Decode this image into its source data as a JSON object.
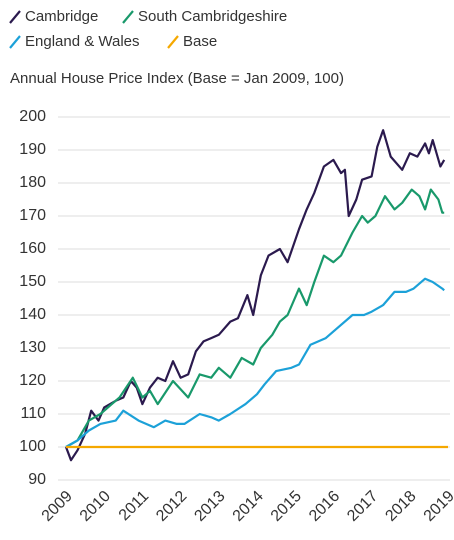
{
  "chart_data": {
    "type": "line",
    "title": "Annual House Price Index (Base = Jan 2009, 100)",
    "xlim": [
      2009,
      2019
    ],
    "xticks": [
      2009,
      2010,
      2011,
      2012,
      2013,
      2014,
      2015,
      2016,
      2017,
      2018,
      2019
    ],
    "ylim": [
      90,
      200
    ],
    "yticks": [
      90,
      100,
      110,
      120,
      130,
      140,
      150,
      160,
      170,
      180,
      190,
      200
    ],
    "grid": true,
    "series": [
      {
        "name": "Cambridge",
        "color": "#2b1a4e",
        "x": [
          2009,
          2009.13,
          2009.3,
          2009.5,
          2009.66,
          2009.85,
          2010.0,
          2010.3,
          2010.5,
          2010.7,
          2010.85,
          2011.0,
          2011.2,
          2011.4,
          2011.6,
          2011.8,
          2012.0,
          2012.2,
          2012.4,
          2012.6,
          2012.8,
          2013.0,
          2013.3,
          2013.5,
          2013.75,
          2013.9,
          2014.1,
          2014.3,
          2014.6,
          2014.8,
          2015.1,
          2015.3,
          2015.5,
          2015.75,
          2016.0,
          2016.2,
          2016.3,
          2016.4,
          2016.6,
          2016.75,
          2017.0,
          2017.15,
          2017.3,
          2017.5,
          2017.8,
          2018.0,
          2018.2,
          2018.4,
          2018.5,
          2018.6,
          2018.8,
          2018.9
        ],
        "values": [
          100,
          96,
          99,
          104,
          111,
          108,
          112,
          114,
          115,
          120,
          118,
          113,
          118,
          121,
          120,
          126,
          121,
          122,
          129,
          132,
          133,
          134,
          138,
          139,
          146,
          140,
          152,
          158,
          160,
          156,
          166,
          172,
          177,
          185,
          187,
          183,
          184,
          170,
          175,
          181,
          182,
          191,
          196,
          188,
          184,
          189,
          188,
          192,
          189,
          193,
          185,
          187
        ]
      },
      {
        "name": "South Cambridgeshire",
        "color": "#19996b",
        "x": [
          2009,
          2009.3,
          2009.6,
          2009.9,
          2010.2,
          2010.4,
          2010.75,
          2011.0,
          2011.2,
          2011.4,
          2011.8,
          2012.2,
          2012.5,
          2012.8,
          2013.0,
          2013.3,
          2013.6,
          2013.9,
          2014.1,
          2014.4,
          2014.6,
          2014.8,
          2015.1,
          2015.3,
          2015.5,
          2015.75,
          2016.0,
          2016.2,
          2016.5,
          2016.75,
          2016.9,
          2017.1,
          2017.35,
          2017.6,
          2017.8,
          2018.05,
          2018.25,
          2018.4,
          2018.55,
          2018.75,
          2018.85,
          2018.9
        ],
        "values": [
          100,
          102,
          108,
          110,
          113,
          115,
          121,
          115,
          117,
          113,
          120,
          115,
          122,
          121,
          124,
          121,
          127,
          125,
          130,
          134,
          138,
          140,
          148,
          143,
          150,
          158,
          156,
          158,
          165,
          170,
          168,
          170,
          176,
          172,
          174,
          178,
          176,
          172,
          178,
          175,
          171,
          171
        ]
      },
      {
        "name": "England & Wales",
        "color": "#1ca1d8",
        "x": [
          2009,
          2009.3,
          2009.6,
          2009.9,
          2010.3,
          2010.5,
          2010.9,
          2011.3,
          2011.6,
          2011.9,
          2012.1,
          2012.5,
          2012.8,
          2013.0,
          2013.3,
          2013.7,
          2014.0,
          2014.2,
          2014.5,
          2014.9,
          2015.1,
          2015.4,
          2015.8,
          2016.1,
          2016.5,
          2016.8,
          2017.0,
          2017.3,
          2017.6,
          2017.9,
          2018.1,
          2018.4,
          2018.6,
          2018.85,
          2018.9
        ],
        "values": [
          100,
          102,
          105,
          107,
          108,
          111,
          108,
          106,
          108,
          107,
          107,
          110,
          109,
          108,
          110,
          113,
          116,
          119,
          123,
          124,
          125,
          131,
          133,
          136,
          140,
          140,
          141,
          143,
          147,
          147,
          148,
          151,
          150,
          148,
          147.5
        ]
      },
      {
        "name": "Base",
        "color": "#f5a800",
        "x": [
          2009,
          2019
        ],
        "values": [
          100,
          100
        ]
      }
    ]
  }
}
